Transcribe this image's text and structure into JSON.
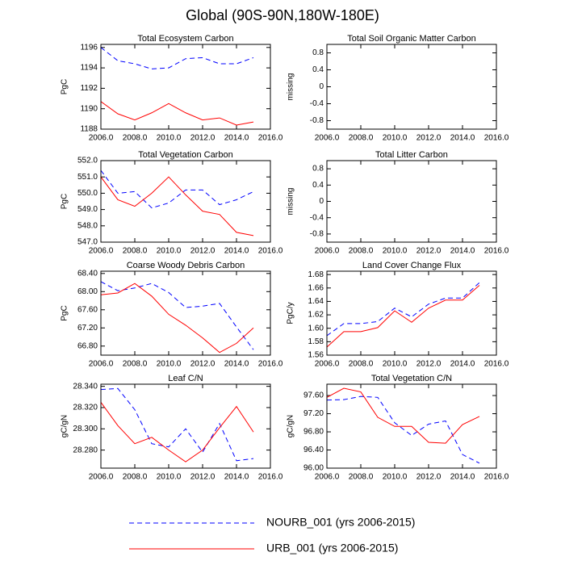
{
  "title": "Global (90S-90N,180W-180E)",
  "chart_data": [
    {
      "type": "line",
      "title": "Total Ecosystem Carbon",
      "ylabel": "PgC",
      "x": [
        2006,
        2007,
        2008,
        2009,
        2010,
        2011,
        2012,
        2013,
        2014,
        2015
      ],
      "series": [
        {
          "name": "NOURB_001 (yrs 2006-2015)",
          "color": "#0000ff",
          "dash": true,
          "values": [
            1196.0,
            1194.7,
            1194.4,
            1193.9,
            1194.0,
            1194.9,
            1195.0,
            1194.4,
            1194.4,
            1195.0
          ]
        },
        {
          "name": "URB_001 (yrs 2006-2015)",
          "color": "#ff0000",
          "dash": false,
          "values": [
            1190.7,
            1189.5,
            1188.9,
            1189.6,
            1190.5,
            1189.6,
            1188.9,
            1189.1,
            1188.4,
            1188.7
          ]
        }
      ],
      "xlim": [
        2006,
        2016
      ],
      "xticks": [
        {
          "value": 2006,
          "label": "2006.0"
        },
        {
          "value": 2008,
          "label": "2008.0"
        },
        {
          "value": 2010,
          "label": "2010.0"
        },
        {
          "value": 2012,
          "label": "2012.0"
        },
        {
          "value": 2014,
          "label": "2014.0"
        },
        {
          "value": 2016,
          "label": "2016.0"
        }
      ],
      "ylim": [
        1188,
        1196.3
      ],
      "yticks": [
        1188,
        1190,
        1192,
        1194,
        1196
      ]
    },
    {
      "type": "line",
      "title": "Total Soil Organic Matter Carbon",
      "ylabel": "missing",
      "xlim": [
        2006,
        2016
      ],
      "xticks": [
        {
          "value": 2006,
          "label": "2006.0"
        },
        {
          "value": 2008,
          "label": "2008.0"
        },
        {
          "value": 2010,
          "label": "2010.0"
        },
        {
          "value": 2012,
          "label": "2012.0"
        },
        {
          "value": 2014,
          "label": "2014.0"
        },
        {
          "value": 2016,
          "label": "2016.0"
        }
      ],
      "ylim": [
        -1,
        1
      ],
      "yticks": [
        -0.8,
        -0.4,
        0,
        0.4,
        0.8
      ]
    },
    {
      "type": "line",
      "title": "Total Vegetation Carbon",
      "ylabel": "PgC",
      "x": [
        2006,
        2007,
        2008,
        2009,
        2010,
        2011,
        2012,
        2013,
        2014,
        2015
      ],
      "series": [
        {
          "color": "#0000ff",
          "dash": true,
          "values": [
            551.4,
            550.0,
            550.1,
            549.1,
            549.4,
            550.2,
            550.2,
            549.3,
            549.6,
            550.1
          ]
        },
        {
          "color": "#ff0000",
          "dash": false,
          "values": [
            551.0,
            549.6,
            549.2,
            550.0,
            551.0,
            549.9,
            548.9,
            548.7,
            547.6,
            547.4
          ]
        }
      ],
      "xlim": [
        2006,
        2016
      ],
      "xticks": [
        {
          "value": 2006,
          "label": "2006.0"
        },
        {
          "value": 2008,
          "label": "2008.0"
        },
        {
          "value": 2010,
          "label": "2010.0"
        },
        {
          "value": 2012,
          "label": "2012.0"
        },
        {
          "value": 2014,
          "label": "2014.0"
        },
        {
          "value": 2016,
          "label": "2016.0"
        }
      ],
      "ylim": [
        547,
        552
      ],
      "yticks": [
        {
          "value": 547,
          "label": "547.0"
        },
        {
          "value": 548,
          "label": "548.0"
        },
        {
          "value": 549,
          "label": "549.0"
        },
        {
          "value": 550,
          "label": "550.0"
        },
        {
          "value": 551,
          "label": "551.0"
        },
        {
          "value": 552,
          "label": "552.0"
        }
      ]
    },
    {
      "type": "line",
      "title": "Total Litter Carbon",
      "ylabel": "missing",
      "xlim": [
        2006,
        2016
      ],
      "xticks": [
        {
          "value": 2006,
          "label": "2006.0"
        },
        {
          "value": 2008,
          "label": "2008.0"
        },
        {
          "value": 2010,
          "label": "2010.0"
        },
        {
          "value": 2012,
          "label": "2012.0"
        },
        {
          "value": 2014,
          "label": "2014.0"
        },
        {
          "value": 2016,
          "label": "2016.0"
        }
      ],
      "ylim": [
        -1,
        1
      ],
      "yticks": [
        -0.8,
        -0.4,
        0,
        0.4,
        0.8
      ]
    },
    {
      "type": "line",
      "title": "Coarse Woody Debris Carbon",
      "ylabel": "PgC",
      "x": [
        2006,
        2007,
        2008,
        2009,
        2010,
        2011,
        2012,
        2013,
        2014,
        2015
      ],
      "series": [
        {
          "color": "#0000ff",
          "dash": true,
          "values": [
            68.22,
            68.02,
            68.08,
            68.18,
            67.98,
            67.65,
            67.68,
            67.74,
            67.22,
            66.72
          ]
        },
        {
          "color": "#ff0000",
          "dash": false,
          "values": [
            67.93,
            67.97,
            68.18,
            67.9,
            67.5,
            67.26,
            66.98,
            66.66,
            66.86,
            67.2
          ]
        }
      ],
      "xlim": [
        2006,
        2016
      ],
      "xticks": [
        {
          "value": 2006,
          "label": "2006.0"
        },
        {
          "value": 2008,
          "label": "2008.0"
        },
        {
          "value": 2010,
          "label": "2010.0"
        },
        {
          "value": 2012,
          "label": "2012.0"
        },
        {
          "value": 2014,
          "label": "2014.0"
        },
        {
          "value": 2016,
          "label": "2016.0"
        }
      ],
      "ylim": [
        66.6,
        68.45
      ],
      "yticks": [
        {
          "value": 66.8,
          "label": "66.80"
        },
        {
          "value": 67.2,
          "label": "67.20"
        },
        {
          "value": 67.6,
          "label": "67.60"
        },
        {
          "value": 68.0,
          "label": "68.00"
        },
        {
          "value": 68.4,
          "label": "68.40"
        }
      ]
    },
    {
      "type": "line",
      "title": "Land Cover Change Flux",
      "ylabel": "PgC/y",
      "x": [
        2006,
        2007,
        2008,
        2009,
        2010,
        2011,
        2012,
        2013,
        2014,
        2015
      ],
      "series": [
        {
          "color": "#0000ff",
          "dash": true,
          "values": [
            1.589,
            1.607,
            1.607,
            1.61,
            1.63,
            1.617,
            1.636,
            1.645,
            1.645,
            1.668
          ]
        },
        {
          "color": "#ff0000",
          "dash": false,
          "values": [
            1.572,
            1.595,
            1.595,
            1.601,
            1.626,
            1.609,
            1.63,
            1.642,
            1.642,
            1.664
          ]
        }
      ],
      "xlim": [
        2006,
        2016
      ],
      "xticks": [
        {
          "value": 2006,
          "label": "2006.0"
        },
        {
          "value": 2008,
          "label": "2008.0"
        },
        {
          "value": 2010,
          "label": "2010.0"
        },
        {
          "value": 2012,
          "label": "2012.0"
        },
        {
          "value": 2014,
          "label": "2014.0"
        },
        {
          "value": 2016,
          "label": "2016.0"
        }
      ],
      "ylim": [
        1.56,
        1.685
      ],
      "yticks": [
        1.56,
        1.58,
        {
          "value": 1.6,
          "label": "1.60"
        },
        1.62,
        1.64,
        1.66,
        1.68
      ]
    },
    {
      "type": "line",
      "title": "Leaf C/N",
      "ylabel": "gC/gN",
      "x": [
        2006,
        2007,
        2008,
        2009,
        2010,
        2011,
        2012,
        2013,
        2014,
        2015
      ],
      "series": [
        {
          "color": "#0000ff",
          "dash": true,
          "values": [
            28.337,
            28.338,
            28.318,
            28.286,
            28.283,
            28.3,
            28.278,
            28.305,
            28.27,
            28.272
          ]
        },
        {
          "color": "#ff0000",
          "dash": false,
          "values": [
            28.325,
            28.303,
            28.286,
            28.292,
            28.28,
            28.269,
            28.28,
            28.301,
            28.321,
            28.297
          ]
        }
      ],
      "xlim": [
        2006,
        2016
      ],
      "xticks": [
        {
          "value": 2006,
          "label": "2006.0"
        },
        {
          "value": 2008,
          "label": "2008.0"
        },
        {
          "value": 2010,
          "label": "2010.0"
        },
        {
          "value": 2012,
          "label": "2012.0"
        },
        {
          "value": 2014,
          "label": "2014.0"
        },
        {
          "value": 2016,
          "label": "2016.0"
        }
      ],
      "ylim": [
        28.263,
        28.342
      ],
      "yticks": [
        {
          "value": 28.28,
          "label": "28.280"
        },
        {
          "value": 28.3,
          "label": "28.300"
        },
        {
          "value": 28.32,
          "label": "28.320"
        },
        {
          "value": 28.34,
          "label": "28.340"
        }
      ]
    },
    {
      "type": "line",
      "title": "Total Vegetation C/N",
      "ylabel": "gC/gN",
      "x": [
        2006,
        2007,
        2008,
        2009,
        2010,
        2011,
        2012,
        2013,
        2014,
        2015
      ],
      "series": [
        {
          "color": "#0000ff",
          "dash": true,
          "values": [
            97.5,
            97.51,
            97.58,
            97.56,
            97.0,
            96.72,
            96.97,
            97.04,
            96.3,
            96.11
          ]
        },
        {
          "color": "#ff0000",
          "dash": false,
          "values": [
            97.56,
            97.76,
            97.68,
            97.12,
            96.92,
            96.92,
            96.57,
            96.55,
            96.96,
            97.14
          ]
        }
      ],
      "xlim": [
        2006,
        2016
      ],
      "xticks": [
        {
          "value": 2006,
          "label": "2006.0"
        },
        {
          "value": 2008,
          "label": "2008.0"
        },
        {
          "value": 2010,
          "label": "2010.0"
        },
        {
          "value": 2012,
          "label": "2012.0"
        },
        {
          "value": 2014,
          "label": "2014.0"
        },
        {
          "value": 2016,
          "label": "2016.0"
        }
      ],
      "ylim": [
        96,
        97.85
      ],
      "yticks": [
        {
          "value": 96.0,
          "label": "96.00"
        },
        {
          "value": 96.4,
          "label": "96.40"
        },
        {
          "value": 96.8,
          "label": "96.80"
        },
        {
          "value": 97.2,
          "label": "97.20"
        },
        {
          "value": 97.6,
          "label": "97.60"
        }
      ]
    }
  ]
}
